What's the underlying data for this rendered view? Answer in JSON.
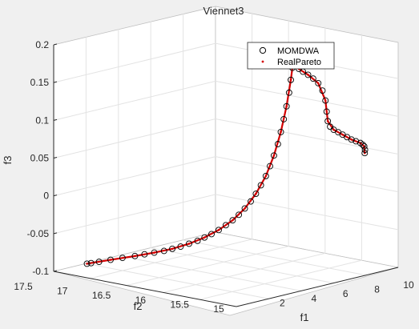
{
  "chart_data": {
    "type": "scatter",
    "projection": "3d",
    "title": "Viennet3",
    "xlabel": "f1",
    "ylabel": "f2",
    "zlabel": "f3",
    "xlim": [
      0,
      10
    ],
    "ylim": [
      15,
      17.5
    ],
    "zlim": [
      -0.1,
      0.2
    ],
    "x_ticks": [
      "2",
      "4",
      "6",
      "8",
      "10"
    ],
    "y_ticks": [
      "15",
      "15.5",
      "16",
      "16.5",
      "17",
      "17.5"
    ],
    "z_ticks": [
      "-0.1",
      "-0.05",
      "0",
      "0.05",
      "0.1",
      "0.15",
      "0.2"
    ],
    "grid": true,
    "legend_position": "top-right",
    "series": [
      {
        "name": "MOMDWA",
        "marker": "circle",
        "color": "#000000",
        "points": [
          [
            0.05,
            17.0,
            -0.1
          ],
          [
            0.1,
            16.95,
            -0.1
          ],
          [
            0.18,
            16.85,
            -0.1
          ],
          [
            0.28,
            16.7,
            -0.1
          ],
          [
            0.4,
            16.55,
            -0.1
          ],
          [
            0.55,
            16.4,
            -0.1
          ],
          [
            0.72,
            16.3,
            -0.099
          ],
          [
            0.9,
            16.2,
            -0.098
          ],
          [
            1.08,
            16.1,
            -0.097
          ],
          [
            1.25,
            16.02,
            -0.095
          ],
          [
            1.42,
            15.94,
            -0.093
          ],
          [
            1.6,
            15.86,
            -0.09
          ],
          [
            1.78,
            15.78,
            -0.087
          ],
          [
            1.95,
            15.72,
            -0.083
          ],
          [
            2.12,
            15.66,
            -0.079
          ],
          [
            2.3,
            15.6,
            -0.074
          ],
          [
            2.48,
            15.54,
            -0.068
          ],
          [
            2.64,
            15.48,
            -0.062
          ],
          [
            2.8,
            15.43,
            -0.055
          ],
          [
            2.95,
            15.38,
            -0.047
          ],
          [
            3.1,
            15.33,
            -0.038
          ],
          [
            3.24,
            15.29,
            -0.028
          ],
          [
            3.37,
            15.25,
            -0.017
          ],
          [
            3.5,
            15.21,
            -0.005
          ],
          [
            3.62,
            15.18,
            0.008
          ],
          [
            3.73,
            15.15,
            0.022
          ],
          [
            3.84,
            15.12,
            0.037
          ],
          [
            3.93,
            15.1,
            0.053
          ],
          [
            4.02,
            15.08,
            0.07
          ],
          [
            4.1,
            15.06,
            0.087
          ],
          [
            4.17,
            15.04,
            0.105
          ],
          [
            4.23,
            15.03,
            0.122
          ],
          [
            4.28,
            15.02,
            0.138
          ],
          [
            4.31,
            15.01,
            0.15
          ],
          [
            4.45,
            15.02,
            0.143
          ],
          [
            4.7,
            15.04,
            0.139
          ],
          [
            5.0,
            15.06,
            0.137
          ],
          [
            5.35,
            15.08,
            0.135
          ],
          [
            5.7,
            15.1,
            0.132
          ],
          [
            6.05,
            15.12,
            0.128
          ],
          [
            6.35,
            15.14,
            0.12
          ],
          [
            6.55,
            15.15,
            0.108
          ],
          [
            6.65,
            15.16,
            0.094
          ],
          [
            6.75,
            15.17,
            0.082
          ],
          [
            6.95,
            15.19,
            0.076
          ],
          [
            7.25,
            15.22,
            0.074
          ],
          [
            7.6,
            15.25,
            0.073
          ],
          [
            7.95,
            15.28,
            0.072
          ],
          [
            8.3,
            15.31,
            0.071
          ],
          [
            8.65,
            15.34,
            0.07
          ],
          [
            9.0,
            15.37,
            0.07
          ],
          [
            9.35,
            15.4,
            0.07
          ],
          [
            9.55,
            15.42,
            0.069
          ],
          [
            9.7,
            15.44,
            0.068
          ],
          [
            9.78,
            15.45,
            0.064
          ],
          [
            9.8,
            15.46,
            0.06
          ]
        ]
      },
      {
        "name": "RealPareto",
        "marker": "dot",
        "color": "#d40000",
        "points": [
          [
            0.05,
            17.0,
            -0.1
          ],
          [
            0.28,
            16.7,
            -0.1
          ],
          [
            0.55,
            16.4,
            -0.1
          ],
          [
            0.9,
            16.2,
            -0.098
          ],
          [
            1.25,
            16.02,
            -0.095
          ],
          [
            1.6,
            15.86,
            -0.09
          ],
          [
            1.95,
            15.72,
            -0.083
          ],
          [
            2.3,
            15.6,
            -0.074
          ],
          [
            2.64,
            15.48,
            -0.062
          ],
          [
            2.95,
            15.38,
            -0.047
          ],
          [
            3.24,
            15.29,
            -0.028
          ],
          [
            3.5,
            15.21,
            -0.005
          ],
          [
            3.73,
            15.15,
            0.022
          ],
          [
            3.93,
            15.1,
            0.053
          ],
          [
            4.1,
            15.06,
            0.087
          ],
          [
            4.23,
            15.03,
            0.122
          ],
          [
            4.31,
            15.01,
            0.15
          ],
          [
            4.7,
            15.04,
            0.139
          ],
          [
            5.35,
            15.08,
            0.135
          ],
          [
            6.05,
            15.12,
            0.128
          ],
          [
            6.55,
            15.15,
            0.108
          ],
          [
            6.75,
            15.17,
            0.082
          ],
          [
            7.25,
            15.22,
            0.074
          ],
          [
            7.95,
            15.28,
            0.072
          ],
          [
            8.65,
            15.34,
            0.07
          ],
          [
            9.35,
            15.4,
            0.07
          ],
          [
            9.7,
            15.44,
            0.068
          ],
          [
            9.8,
            15.46,
            0.06
          ]
        ]
      }
    ]
  }
}
